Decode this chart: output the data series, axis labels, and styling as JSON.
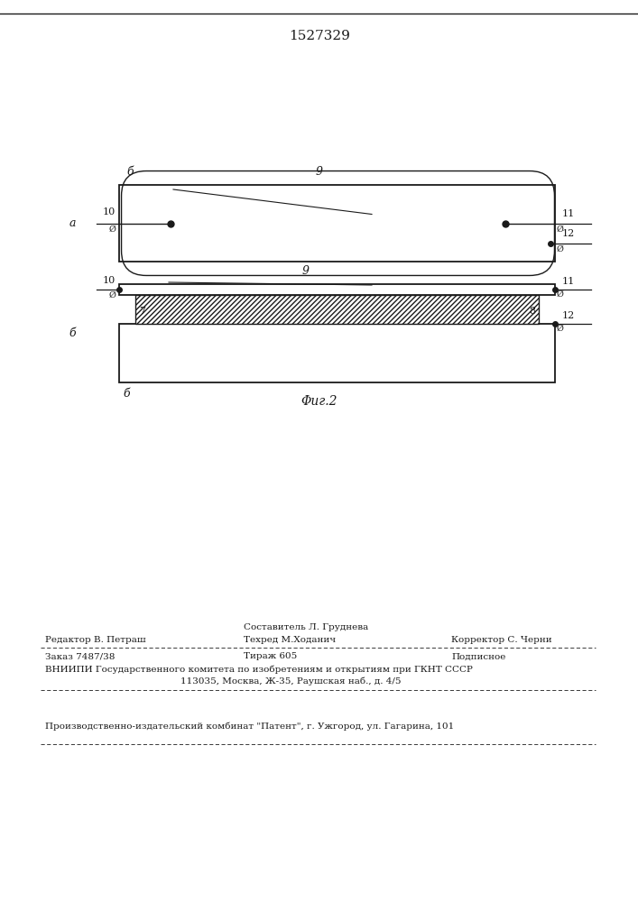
{
  "patent_number": "1527329",
  "background_color": "#ffffff",
  "line_color": "#1a1a1a",
  "panel_a_label": "a",
  "panel_b_label": "б",
  "label_6": "б",
  "label_7": "7",
  "label_8": "8",
  "label_9": "9",
  "label_10": "10",
  "label_11": "11",
  "label_12": "12",
  "fig_caption": "Φиг.2",
  "footer": {
    "sestavitel_label": "Составитель Л. Груднева",
    "redaktor_label": "Редактор В. Петраш",
    "tehred_label": "Техред М.Ходанич",
    "korrektor_label": "Корректор С. Черни",
    "zakaz": "Заказ 7487/38",
    "tirazh": "Тираж 605",
    "podpisnoe": "Подписное",
    "vniip_line1": "ВНИИПИ Государственного комитета по изобретениям и открытиям при ГКНТ СССР",
    "vniip_line2": "113035, Москва, Ж-35, Раушская наб., д. 4/5",
    "patent_line": "Производственно-издательский комбинат \"Патент\", г. Ужгород, ул. Гагарина, 101"
  }
}
